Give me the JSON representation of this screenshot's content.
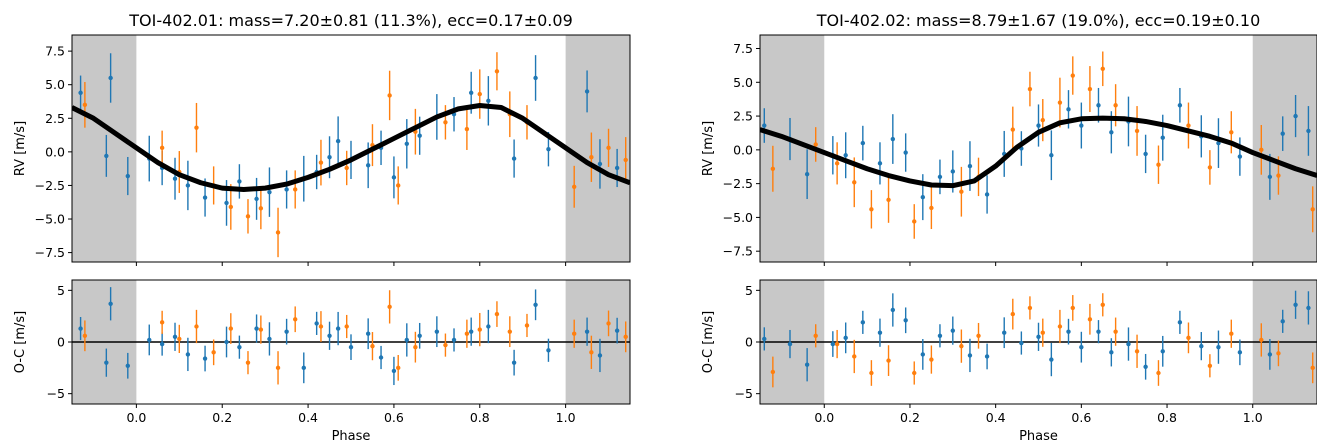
{
  "chart_data": [
    {
      "type": "scatter",
      "panel": "rv",
      "title": "TOI-402.01: mass=7.20±0.81 (11.3%), ecc=0.17±0.09",
      "xlabel": "",
      "ylabel": "RV [m/s]",
      "xlim": [
        -0.15,
        1.15
      ],
      "ylim": [
        -8.2,
        8.7
      ],
      "xticks": [
        "0.0",
        "0.2",
        "0.4",
        "0.6",
        "0.8",
        "1.0"
      ],
      "yticks": [
        "−7.5",
        "−5.0",
        "−2.5",
        "0.0",
        "2.5",
        "5.0",
        "7.5"
      ],
      "shaded_regions": [
        [
          -0.15,
          0.0
        ],
        [
          1.0,
          1.15
        ]
      ],
      "colors": {
        "series1": "#1f77b4",
        "series2": "#ff7f0e",
        "model": "#000000",
        "shade": "#c8c8c8"
      },
      "model": {
        "x": [
          -0.15,
          -0.1,
          -0.05,
          0.0,
          0.05,
          0.1,
          0.15,
          0.2,
          0.25,
          0.3,
          0.35,
          0.4,
          0.45,
          0.5,
          0.55,
          0.6,
          0.65,
          0.7,
          0.75,
          0.8,
          0.85,
          0.9,
          0.95,
          1.0,
          1.05,
          1.1,
          1.15
        ],
        "y": [
          3.3,
          2.5,
          1.4,
          0.3,
          -0.8,
          -1.7,
          -2.3,
          -2.7,
          -2.8,
          -2.7,
          -2.4,
          -1.9,
          -1.3,
          -0.6,
          0.2,
          1.0,
          1.8,
          2.6,
          3.2,
          3.45,
          3.3,
          2.5,
          1.4,
          0.3,
          -0.8,
          -1.7,
          -2.3
        ]
      },
      "series": [
        {
          "x": [
            -0.13,
            -0.07,
            -0.06,
            -0.02,
            0.03,
            0.06,
            0.09,
            0.12,
            0.16,
            0.21,
            0.24,
            0.28,
            0.31,
            0.35,
            0.39,
            0.42,
            0.45,
            0.47,
            0.5,
            0.54,
            0.57,
            0.6,
            0.63,
            0.66,
            0.7,
            0.74,
            0.78,
            0.82,
            0.88,
            0.93,
            0.96,
            1.05,
            1.08,
            1.12
          ],
          "y": [
            4.4,
            -0.3,
            5.5,
            -1.8,
            -0.5,
            -1.2,
            -2.0,
            -2.5,
            -3.4,
            -3.8,
            -2.2,
            -3.5,
            -3.0,
            -2.8,
            -2.0,
            -1.5,
            -0.4,
            0.8,
            -0.6,
            -1.0,
            0.3,
            -1.9,
            0.6,
            1.2,
            2.6,
            2.8,
            4.4,
            3.8,
            -0.5,
            5.5,
            0.2,
            4.5,
            -0.9,
            -1.2
          ]
        },
        {
          "x": [
            -0.12,
            0.06,
            0.1,
            0.14,
            0.18,
            0.22,
            0.26,
            0.29,
            0.33,
            0.37,
            0.43,
            0.49,
            0.55,
            0.59,
            0.61,
            0.65,
            0.72,
            0.77,
            0.8,
            0.84,
            0.87,
            0.91,
            1.02,
            1.06,
            1.1,
            1.14
          ],
          "y": [
            3.5,
            0.3,
            -1.5,
            1.8,
            -2.5,
            -4.1,
            -4.8,
            -4.2,
            -6.0,
            -2.8,
            -0.8,
            -1.2,
            0.5,
            4.2,
            -2.5,
            1.5,
            2.2,
            1.7,
            4.3,
            6.0,
            2.8,
            2.2,
            -2.6,
            -0.4,
            0.3,
            -0.6
          ]
        }
      ]
    },
    {
      "type": "scatter",
      "panel": "residuals",
      "title": "",
      "xlabel": "Phase",
      "ylabel": "O-C [m/s]",
      "xlim": [
        -0.15,
        1.15
      ],
      "ylim": [
        -6.0,
        6.0
      ],
      "xticks": [
        "0.0",
        "0.2",
        "0.4",
        "0.6",
        "0.8",
        "1.0"
      ],
      "yticks": [
        "−5",
        "0",
        "5"
      ],
      "shaded_regions": [
        [
          -0.15,
          0.0
        ],
        [
          1.0,
          1.15
        ]
      ],
      "zero_line": 0,
      "series": [
        {
          "x": [
            -0.13,
            -0.07,
            -0.06,
            -0.02,
            0.03,
            0.06,
            0.09,
            0.12,
            0.16,
            0.21,
            0.24,
            0.28,
            0.31,
            0.35,
            0.39,
            0.42,
            0.45,
            0.47,
            0.5,
            0.54,
            0.57,
            0.6,
            0.63,
            0.66,
            0.7,
            0.74,
            0.78,
            0.82,
            0.88,
            0.93,
            0.96,
            1.05,
            1.08,
            1.12
          ],
          "y": [
            1.3,
            -2.0,
            3.7,
            -2.3,
            0.2,
            -0.2,
            0.5,
            -1.2,
            -1.6,
            0.0,
            -0.5,
            1.3,
            0.3,
            1.0,
            -2.5,
            1.8,
            0.6,
            1.3,
            -0.5,
            0.8,
            -1.5,
            -2.8,
            0.2,
            0.6,
            1.0,
            0.2,
            1.0,
            1.5,
            -2.0,
            3.6,
            -0.8,
            1.0,
            -1.3,
            1.1
          ]
        },
        {
          "x": [
            -0.12,
            0.06,
            0.1,
            0.14,
            0.18,
            0.22,
            0.26,
            0.29,
            0.33,
            0.37,
            0.43,
            0.49,
            0.55,
            0.59,
            0.61,
            0.65,
            0.72,
            0.77,
            0.8,
            0.84,
            0.87,
            0.91,
            1.02,
            1.06,
            1.1,
            1.14
          ],
          "y": [
            0.6,
            1.9,
            0.3,
            1.5,
            -1.0,
            1.3,
            -2.0,
            1.2,
            -2.5,
            2.2,
            1.5,
            1.5,
            -0.4,
            3.4,
            -2.5,
            -0.5,
            -0.3,
            0.8,
            1.2,
            2.7,
            1.0,
            1.6,
            0.8,
            -1.0,
            1.8,
            0.5
          ]
        }
      ]
    },
    {
      "type": "scatter",
      "panel": "rv",
      "title": "TOI-402.02: mass=8.79±1.67 (19.0%), ecc=0.19±0.10",
      "xlabel": "",
      "ylabel": "RV [m/s]",
      "xlim": [
        -0.15,
        1.15
      ],
      "ylim": [
        -8.3,
        8.5
      ],
      "xticks": [
        "0.0",
        "0.2",
        "0.4",
        "0.6",
        "0.8",
        "1.0"
      ],
      "yticks": [
        "−7.5",
        "−5.0",
        "−2.5",
        "0.0",
        "2.5",
        "5.0",
        "7.5"
      ],
      "shaded_regions": [
        [
          -0.15,
          0.0
        ],
        [
          1.0,
          1.15
        ]
      ],
      "model": {
        "x": [
          -0.15,
          -0.1,
          -0.05,
          0.0,
          0.05,
          0.1,
          0.15,
          0.2,
          0.25,
          0.3,
          0.35,
          0.4,
          0.45,
          0.5,
          0.55,
          0.6,
          0.65,
          0.7,
          0.75,
          0.8,
          0.85,
          0.9,
          0.95,
          1.0,
          1.05,
          1.1,
          1.15
        ],
        "y": [
          1.5,
          1.0,
          0.4,
          -0.2,
          -0.8,
          -1.4,
          -1.9,
          -2.3,
          -2.6,
          -2.65,
          -2.3,
          -1.2,
          0.2,
          1.3,
          2.0,
          2.3,
          2.35,
          2.3,
          2.1,
          1.8,
          1.4,
          1.0,
          0.5,
          -0.2,
          -0.8,
          -1.4,
          -1.9
        ]
      },
      "series": [
        {
          "x": [
            -0.14,
            -0.08,
            -0.04,
            0.02,
            0.05,
            0.09,
            0.13,
            0.16,
            0.19,
            0.23,
            0.27,
            0.3,
            0.34,
            0.38,
            0.42,
            0.46,
            0.5,
            0.53,
            0.57,
            0.6,
            0.64,
            0.67,
            0.71,
            0.75,
            0.79,
            0.83,
            0.88,
            0.92,
            0.97,
            1.04,
            1.07,
            1.1,
            1.13
          ],
          "y": [
            1.8,
            0.8,
            -1.8,
            -0.4,
            -0.4,
            0.5,
            -1.0,
            0.8,
            -0.2,
            -3.5,
            -2.0,
            -1.6,
            -1.2,
            -3.3,
            -0.3,
            0.1,
            1.8,
            -0.4,
            3.0,
            1.8,
            3.3,
            1.3,
            2.1,
            -0.3,
            0.9,
            3.3,
            1.0,
            0.5,
            -0.5,
            -2.0,
            1.2,
            2.5,
            1.4
          ]
        },
        {
          "x": [
            -0.12,
            -0.02,
            0.03,
            0.07,
            0.11,
            0.15,
            0.21,
            0.25,
            0.32,
            0.36,
            0.44,
            0.48,
            0.51,
            0.55,
            0.58,
            0.62,
            0.65,
            0.68,
            0.73,
            0.78,
            0.85,
            0.9,
            0.95,
            1.02,
            1.06,
            1.14
          ],
          "y": [
            -1.4,
            0.4,
            -1.0,
            -2.4,
            -4.4,
            -3.7,
            -5.3,
            -4.3,
            -3.1,
            -2.0,
            1.5,
            4.5,
            2.2,
            3.5,
            5.5,
            4.5,
            6.0,
            3.3,
            1.4,
            -1.1,
            1.8,
            -1.3,
            1.3,
            0.0,
            -1.9,
            -4.4
          ]
        }
      ]
    },
    {
      "type": "scatter",
      "panel": "residuals",
      "title": "",
      "xlabel": "Phase",
      "ylabel": "O-C [m/s]",
      "xlim": [
        -0.15,
        1.15
      ],
      "ylim": [
        -6.0,
        6.0
      ],
      "xticks": [
        "0.0",
        "0.2",
        "0.4",
        "0.6",
        "0.8",
        "1.0"
      ],
      "yticks": [
        "−5",
        "0",
        "5"
      ],
      "shaded_regions": [
        [
          -0.15,
          0.0
        ],
        [
          1.0,
          1.15
        ]
      ],
      "zero_line": 0,
      "series": [
        {
          "x": [
            -0.14,
            -0.08,
            -0.04,
            0.02,
            0.05,
            0.09,
            0.13,
            0.16,
            0.19,
            0.23,
            0.27,
            0.3,
            0.34,
            0.38,
            0.42,
            0.46,
            0.5,
            0.53,
            0.57,
            0.6,
            0.64,
            0.67,
            0.71,
            0.75,
            0.79,
            0.83,
            0.88,
            0.92,
            0.97,
            1.04,
            1.07,
            1.1,
            1.13
          ],
          "y": [
            0.3,
            -0.2,
            -2.2,
            -0.2,
            0.4,
            1.9,
            0.9,
            3.1,
            2.1,
            -1.2,
            0.6,
            1.1,
            -1.3,
            -1.4,
            0.9,
            -0.1,
            0.5,
            -1.7,
            1.0,
            -0.5,
            1.0,
            -1.0,
            -0.2,
            -2.4,
            -0.9,
            1.9,
            -0.4,
            -0.5,
            -1.0,
            -1.2,
            2.0,
            3.6,
            3.3
          ]
        },
        {
          "x": [
            -0.12,
            -0.02,
            0.03,
            0.07,
            0.11,
            0.15,
            0.21,
            0.25,
            0.32,
            0.36,
            0.44,
            0.48,
            0.51,
            0.55,
            0.58,
            0.62,
            0.65,
            0.68,
            0.73,
            0.78,
            0.85,
            0.9,
            0.95,
            1.02,
            1.06,
            1.14
          ],
          "y": [
            -2.9,
            0.6,
            -0.2,
            -1.4,
            -3.0,
            -1.8,
            -3.0,
            -1.7,
            -0.4,
            0.6,
            2.7,
            3.3,
            0.9,
            1.5,
            3.3,
            2.2,
            3.6,
            1.0,
            -0.9,
            -3.0,
            0.4,
            -2.3,
            0.8,
            0.2,
            -1.1,
            -2.5
          ]
        }
      ]
    }
  ]
}
